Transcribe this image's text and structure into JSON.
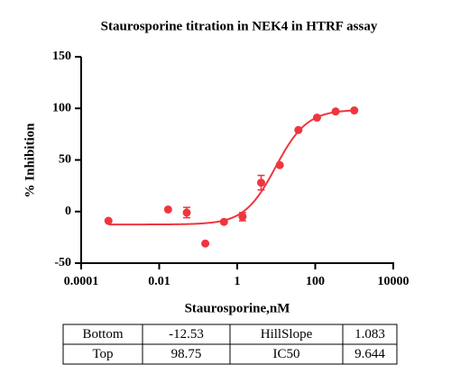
{
  "chart_data": {
    "type": "scatter",
    "title": "Staurosporine titration in NEK4 in HTRF assay",
    "x_label": "Staurosporine,nM",
    "y_label": "% Inhibition",
    "x_scale": "log",
    "color": "#f0353f",
    "x": [
      0.0005,
      0.0169,
      0.0508,
      0.152,
      0.457,
      1.37,
      4.1,
      12.3,
      37,
      111,
      333,
      1000
    ],
    "values": [
      -9,
      2,
      -1,
      -31,
      -10,
      -5,
      28,
      45,
      79,
      91,
      97,
      98
    ],
    "errors": [
      null,
      null,
      5,
      null,
      null,
      4,
      7,
      null,
      null,
      null,
      null,
      null
    ],
    "xlim": [
      0.0001,
      10000
    ],
    "xticks": [
      0.0001,
      0.01,
      1,
      100,
      10000
    ],
    "ylim": [
      -50,
      150
    ],
    "yticks": [
      -50,
      0,
      50,
      100,
      150
    ]
  },
  "table": {
    "rows": [
      [
        "Bottom",
        -12.53,
        "HillSlope",
        1.083
      ],
      [
        "Top",
        98.75,
        "IC50",
        9.644
      ]
    ]
  }
}
